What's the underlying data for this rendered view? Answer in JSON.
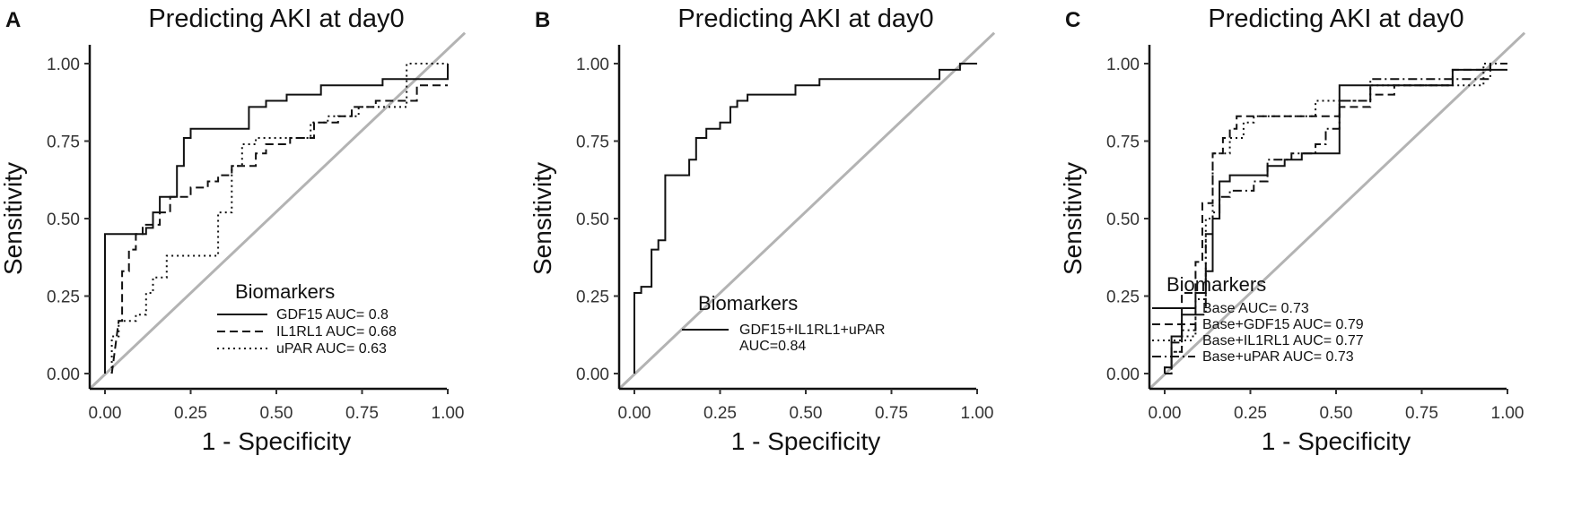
{
  "chart_data": [
    {
      "panel": "A",
      "type": "line",
      "title": "Predicting AKI at day0",
      "xlabel": "1 - Specificity",
      "ylabel": "Sensitivity",
      "xlim": [
        0,
        1
      ],
      "ylim": [
        0,
        1
      ],
      "xticks": [
        "0.00",
        "0.25",
        "0.50",
        "0.75",
        "1.00"
      ],
      "yticks": [
        "0.00",
        "0.25",
        "0.50",
        "0.75",
        "1.00"
      ],
      "reference_line": "diagonal",
      "legend": {
        "title": "Biomarkers",
        "position": "bottom-right"
      },
      "series": [
        {
          "name": "GDF15  AUC= 0.8",
          "dash": "solid",
          "points": [
            [
              0,
              0
            ],
            [
              0,
              0.45
            ],
            [
              0.12,
              0.45
            ],
            [
              0.12,
              0.47
            ],
            [
              0.14,
              0.47
            ],
            [
              0.14,
              0.52
            ],
            [
              0.16,
              0.52
            ],
            [
              0.16,
              0.57
            ],
            [
              0.21,
              0.57
            ],
            [
              0.21,
              0.67
            ],
            [
              0.23,
              0.67
            ],
            [
              0.23,
              0.76
            ],
            [
              0.25,
              0.76
            ],
            [
              0.25,
              0.79
            ],
            [
              0.42,
              0.79
            ],
            [
              0.42,
              0.86
            ],
            [
              0.47,
              0.86
            ],
            [
              0.47,
              0.88
            ],
            [
              0.53,
              0.88
            ],
            [
              0.53,
              0.9
            ],
            [
              0.63,
              0.9
            ],
            [
              0.63,
              0.93
            ],
            [
              0.81,
              0.93
            ],
            [
              0.81,
              0.95
            ],
            [
              1,
              0.95
            ],
            [
              1,
              1
            ]
          ]
        },
        {
          "name": "IL1RL1 AUC= 0.68",
          "dash": "dashed",
          "points": [
            [
              0.02,
              0
            ],
            [
              0.04,
              0.17
            ],
            [
              0.05,
              0.17
            ],
            [
              0.05,
              0.33
            ],
            [
              0.07,
              0.33
            ],
            [
              0.07,
              0.4
            ],
            [
              0.09,
              0.4
            ],
            [
              0.09,
              0.45
            ],
            [
              0.11,
              0.45
            ],
            [
              0.11,
              0.48
            ],
            [
              0.16,
              0.48
            ],
            [
              0.16,
              0.52
            ],
            [
              0.19,
              0.52
            ],
            [
              0.19,
              0.57
            ],
            [
              0.25,
              0.57
            ],
            [
              0.25,
              0.6
            ],
            [
              0.3,
              0.6
            ],
            [
              0.3,
              0.62
            ],
            [
              0.33,
              0.62
            ],
            [
              0.33,
              0.64
            ],
            [
              0.37,
              0.64
            ],
            [
              0.37,
              0.67
            ],
            [
              0.44,
              0.67
            ],
            [
              0.44,
              0.71
            ],
            [
              0.47,
              0.71
            ],
            [
              0.47,
              0.74
            ],
            [
              0.54,
              0.74
            ],
            [
              0.54,
              0.76
            ],
            [
              0.61,
              0.76
            ],
            [
              0.61,
              0.81
            ],
            [
              0.68,
              0.81
            ],
            [
              0.68,
              0.83
            ],
            [
              0.72,
              0.83
            ],
            [
              0.72,
              0.86
            ],
            [
              0.79,
              0.86
            ],
            [
              0.79,
              0.88
            ],
            [
              0.91,
              0.88
            ],
            [
              0.91,
              0.93
            ],
            [
              1,
              0.93
            ]
          ]
        },
        {
          "name": "uPAR  AUC= 0.63",
          "dash": "dotted",
          "points": [
            [
              0.02,
              0
            ],
            [
              0.02,
              0.12
            ],
            [
              0.04,
              0.12
            ],
            [
              0.04,
              0.17
            ],
            [
              0.09,
              0.17
            ],
            [
              0.09,
              0.19
            ],
            [
              0.12,
              0.19
            ],
            [
              0.12,
              0.26
            ],
            [
              0.14,
              0.26
            ],
            [
              0.14,
              0.31
            ],
            [
              0.18,
              0.31
            ],
            [
              0.18,
              0.38
            ],
            [
              0.33,
              0.38
            ],
            [
              0.33,
              0.52
            ],
            [
              0.37,
              0.52
            ],
            [
              0.37,
              0.67
            ],
            [
              0.4,
              0.67
            ],
            [
              0.4,
              0.74
            ],
            [
              0.44,
              0.74
            ],
            [
              0.44,
              0.76
            ],
            [
              0.6,
              0.76
            ],
            [
              0.6,
              0.81
            ],
            [
              0.65,
              0.81
            ],
            [
              0.65,
              0.83
            ],
            [
              0.74,
              0.83
            ],
            [
              0.74,
              0.86
            ],
            [
              0.88,
              0.86
            ],
            [
              0.88,
              1
            ],
            [
              1,
              1
            ]
          ]
        }
      ]
    },
    {
      "panel": "B",
      "type": "line",
      "title": "Predicting AKI at day0",
      "xlabel": "1 - Specificity",
      "ylabel": "Sensitivity",
      "xlim": [
        0,
        1
      ],
      "ylim": [
        0,
        1
      ],
      "xticks": [
        "0.00",
        "0.25",
        "0.50",
        "0.75",
        "1.00"
      ],
      "yticks": [
        "0.00",
        "0.25",
        "0.50",
        "0.75",
        "1.00"
      ],
      "reference_line": "diagonal",
      "legend": {
        "title": "Biomarkers",
        "position": "bottom-right"
      },
      "series": [
        {
          "name": "GDF15+IL1RL1+uPAR\nAUC=0.84",
          "dash": "solid",
          "points": [
            [
              0,
              0
            ],
            [
              0,
              0.26
            ],
            [
              0.02,
              0.26
            ],
            [
              0.02,
              0.28
            ],
            [
              0.05,
              0.28
            ],
            [
              0.05,
              0.4
            ],
            [
              0.07,
              0.4
            ],
            [
              0.07,
              0.43
            ],
            [
              0.09,
              0.43
            ],
            [
              0.09,
              0.64
            ],
            [
              0.16,
              0.64
            ],
            [
              0.16,
              0.69
            ],
            [
              0.18,
              0.69
            ],
            [
              0.18,
              0.76
            ],
            [
              0.21,
              0.76
            ],
            [
              0.21,
              0.79
            ],
            [
              0.25,
              0.79
            ],
            [
              0.25,
              0.81
            ],
            [
              0.28,
              0.81
            ],
            [
              0.28,
              0.86
            ],
            [
              0.3,
              0.86
            ],
            [
              0.3,
              0.88
            ],
            [
              0.33,
              0.88
            ],
            [
              0.33,
              0.9
            ],
            [
              0.47,
              0.9
            ],
            [
              0.47,
              0.93
            ],
            [
              0.54,
              0.93
            ],
            [
              0.54,
              0.95
            ],
            [
              0.89,
              0.95
            ],
            [
              0.89,
              0.98
            ],
            [
              0.95,
              0.98
            ],
            [
              0.95,
              1
            ],
            [
              1,
              1
            ]
          ]
        }
      ]
    },
    {
      "panel": "C",
      "type": "line",
      "title": "Predicting AKI at day0",
      "xlabel": "1 - Specificity",
      "ylabel": "Sensitivity",
      "xlim": [
        0,
        1
      ],
      "ylim": [
        0,
        1
      ],
      "xticks": [
        "0.00",
        "0.25",
        "0.50",
        "0.75",
        "1.00"
      ],
      "yticks": [
        "0.00",
        "0.25",
        "0.50",
        "0.75",
        "1.00"
      ],
      "reference_line": "diagonal",
      "legend": {
        "title": "Biomarkers",
        "position": "bottom-right"
      },
      "series": [
        {
          "name": "Base AUC= 0.73",
          "dash": "solid",
          "points": [
            [
              0,
              0
            ],
            [
              0,
              0.02
            ],
            [
              0.02,
              0.02
            ],
            [
              0.02,
              0.12
            ],
            [
              0.05,
              0.12
            ],
            [
              0.05,
              0.19
            ],
            [
              0.09,
              0.19
            ],
            [
              0.09,
              0.26
            ],
            [
              0.12,
              0.26
            ],
            [
              0.12,
              0.33
            ],
            [
              0.14,
              0.33
            ],
            [
              0.14,
              0.5
            ],
            [
              0.16,
              0.5
            ],
            [
              0.16,
              0.62
            ],
            [
              0.19,
              0.62
            ],
            [
              0.19,
              0.64
            ],
            [
              0.3,
              0.64
            ],
            [
              0.3,
              0.67
            ],
            [
              0.35,
              0.67
            ],
            [
              0.35,
              0.69
            ],
            [
              0.4,
              0.69
            ],
            [
              0.4,
              0.71
            ],
            [
              0.51,
              0.71
            ],
            [
              0.51,
              0.93
            ],
            [
              0.84,
              0.93
            ],
            [
              0.84,
              0.98
            ],
            [
              1,
              0.98
            ]
          ]
        },
        {
          "name": "Base+GDF15 AUC= 0.79",
          "dash": "dashed",
          "points": [
            [
              0,
              0
            ],
            [
              0.02,
              0
            ],
            [
              0.02,
              0.1
            ],
            [
              0.05,
              0.1
            ],
            [
              0.05,
              0.26
            ],
            [
              0.09,
              0.26
            ],
            [
              0.09,
              0.36
            ],
            [
              0.11,
              0.36
            ],
            [
              0.11,
              0.55
            ],
            [
              0.14,
              0.55
            ],
            [
              0.14,
              0.71
            ],
            [
              0.17,
              0.71
            ],
            [
              0.17,
              0.76
            ],
            [
              0.19,
              0.76
            ],
            [
              0.19,
              0.79
            ],
            [
              0.21,
              0.79
            ],
            [
              0.21,
              0.83
            ],
            [
              0.51,
              0.83
            ],
            [
              0.51,
              0.86
            ],
            [
              0.6,
              0.86
            ],
            [
              0.6,
              0.9
            ],
            [
              0.67,
              0.9
            ],
            [
              0.67,
              0.93
            ],
            [
              0.84,
              0.93
            ],
            [
              0.84,
              0.98
            ],
            [
              0.95,
              0.98
            ],
            [
              0.95,
              1
            ]
          ]
        },
        {
          "name": "Base+IL1RL1 AUC= 0.77",
          "dash": "dotted",
          "points": [
            [
              0,
              0
            ],
            [
              0.02,
              0
            ],
            [
              0.02,
              0.07
            ],
            [
              0.05,
              0.07
            ],
            [
              0.05,
              0.12
            ],
            [
              0.09,
              0.12
            ],
            [
              0.09,
              0.24
            ],
            [
              0.12,
              0.24
            ],
            [
              0.12,
              0.5
            ],
            [
              0.14,
              0.5
            ],
            [
              0.14,
              0.71
            ],
            [
              0.19,
              0.71
            ],
            [
              0.19,
              0.76
            ],
            [
              0.23,
              0.76
            ],
            [
              0.23,
              0.81
            ],
            [
              0.26,
              0.81
            ],
            [
              0.26,
              0.83
            ],
            [
              0.44,
              0.83
            ],
            [
              0.44,
              0.88
            ],
            [
              0.6,
              0.88
            ],
            [
              0.6,
              0.93
            ],
            [
              0.93,
              0.93
            ],
            [
              0.93,
              1
            ],
            [
              1,
              1
            ]
          ]
        },
        {
          "name": "Base+uPAR AUC= 0.73",
          "dash": "dashdot",
          "points": [
            [
              0,
              0
            ],
            [
              0,
              0.02
            ],
            [
              0.02,
              0.02
            ],
            [
              0.02,
              0.07
            ],
            [
              0.05,
              0.07
            ],
            [
              0.05,
              0.14
            ],
            [
              0.09,
              0.14
            ],
            [
              0.09,
              0.19
            ],
            [
              0.12,
              0.19
            ],
            [
              0.12,
              0.45
            ],
            [
              0.14,
              0.45
            ],
            [
              0.14,
              0.52
            ],
            [
              0.16,
              0.52
            ],
            [
              0.16,
              0.57
            ],
            [
              0.19,
              0.57
            ],
            [
              0.19,
              0.59
            ],
            [
              0.26,
              0.59
            ],
            [
              0.26,
              0.62
            ],
            [
              0.3,
              0.62
            ],
            [
              0.3,
              0.69
            ],
            [
              0.37,
              0.69
            ],
            [
              0.37,
              0.71
            ],
            [
              0.44,
              0.71
            ],
            [
              0.44,
              0.74
            ],
            [
              0.47,
              0.74
            ],
            [
              0.47,
              0.79
            ],
            [
              0.51,
              0.79
            ],
            [
              0.51,
              0.88
            ],
            [
              0.6,
              0.88
            ],
            [
              0.6,
              0.95
            ],
            [
              0.95,
              0.95
            ],
            [
              0.95,
              1
            ],
            [
              1,
              1
            ]
          ]
        }
      ]
    }
  ]
}
